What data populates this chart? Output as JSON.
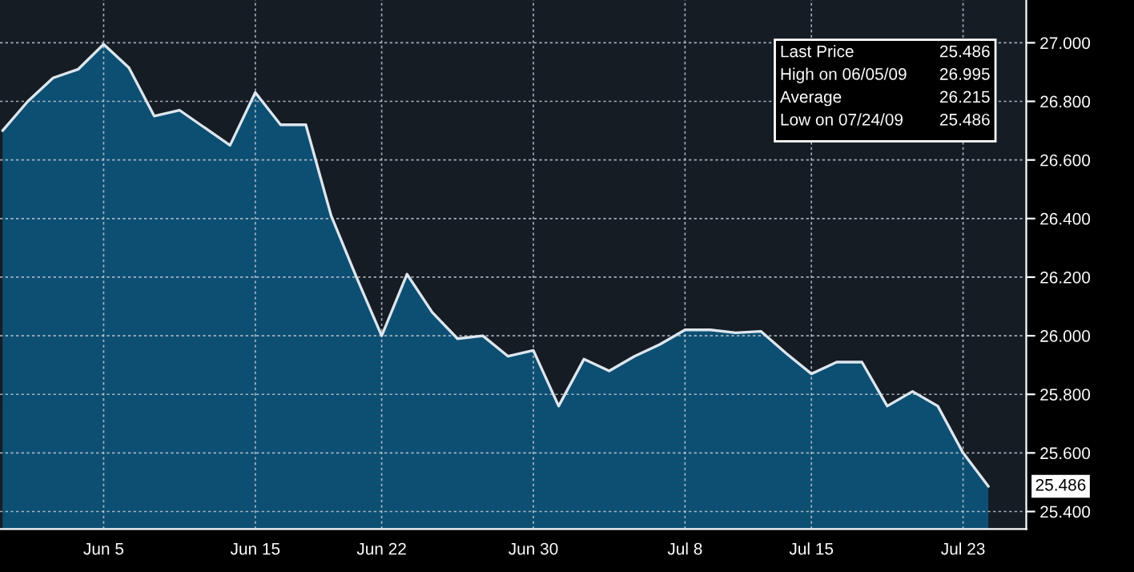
{
  "chart_data": {
    "type": "area",
    "categories": [
      null,
      null,
      null,
      null,
      "Jun 5",
      null,
      null,
      null,
      null,
      null,
      "Jun 15",
      null,
      null,
      null,
      null,
      "Jun 22",
      null,
      null,
      null,
      null,
      null,
      "Jun 30",
      null,
      null,
      null,
      null,
      null,
      "Jul 8",
      null,
      null,
      null,
      null,
      "Jul 15",
      null,
      null,
      null,
      null,
      null,
      "Jul 23",
      null
    ],
    "series": [
      {
        "color": "#0d4f72",
        "values": [
          26.7,
          26.8,
          26.88,
          26.91,
          26.995,
          26.915,
          26.75,
          26.77,
          26.71,
          26.65,
          26.83,
          26.72,
          26.72,
          26.41,
          26.2,
          26.0,
          26.21,
          26.08,
          25.99,
          26.0,
          25.93,
          25.95,
          25.76,
          25.92,
          25.88,
          25.93,
          25.97,
          26.02,
          26.02,
          26.01,
          26.015,
          25.94,
          25.87,
          25.91,
          25.91,
          25.76,
          25.81,
          25.76,
          25.6,
          25.486
        ]
      }
    ],
    "ylim": [
      25.34,
      27.146
    ],
    "yticks": [
      {
        "value": 25.4,
        "label": "25.400"
      },
      {
        "value": 25.6,
        "label": "25.600"
      },
      {
        "value": 25.8,
        "label": "25.800"
      },
      {
        "value": 26.0,
        "label": "26.000"
      },
      {
        "value": 26.2,
        "label": "26.200"
      },
      {
        "value": 26.4,
        "label": "26.400"
      },
      {
        "value": 26.6,
        "label": "26.600"
      },
      {
        "value": 26.8,
        "label": "26.800"
      },
      {
        "value": 27.0,
        "label": "27.000"
      }
    ],
    "grid": true,
    "annotations": [
      "Last Price",
      "25.486",
      "High on 06/05/09",
      "26.995",
      "Average",
      "26.215",
      "Low on 07/24/09",
      "25.486",
      "25.486"
    ]
  }
}
